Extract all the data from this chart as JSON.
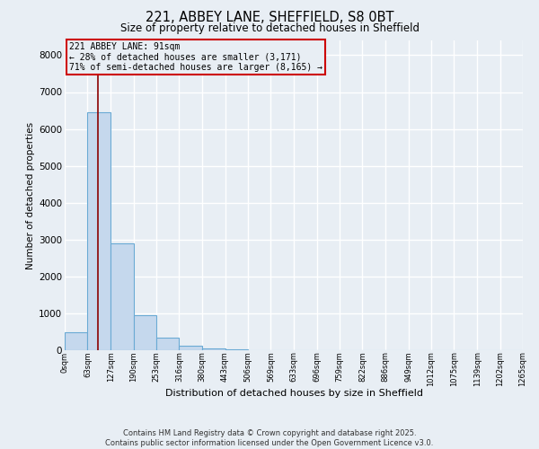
{
  "title": "221, ABBEY LANE, SHEFFIELD, S8 0BT",
  "subtitle": "Size of property relative to detached houses in Sheffield",
  "xlabel": "Distribution of detached houses by size in Sheffield",
  "ylabel": "Number of detached properties",
  "bar_color": "#c5d8ed",
  "bar_edge_color": "#6aaad4",
  "annotation_box_color": "#cc0000",
  "property_line_color": "#8b0000",
  "property_sqm": 91,
  "annotation_line1": "221 ABBEY LANE: 91sqm",
  "annotation_line2": "← 28% of detached houses are smaller (3,171)",
  "annotation_line3": "71% of semi-detached houses are larger (8,165) →",
  "footer_line1": "Contains HM Land Registry data © Crown copyright and database right 2025.",
  "footer_line2": "Contains public sector information licensed under the Open Government Licence v3.0.",
  "ylim": [
    0,
    8400
  ],
  "yticks": [
    0,
    1000,
    2000,
    3000,
    4000,
    5000,
    6000,
    7000,
    8000
  ],
  "bin_edges": [
    0,
    63,
    127,
    190,
    253,
    316,
    380,
    443,
    506,
    569,
    633,
    696,
    759,
    822,
    886,
    949,
    1012,
    1075,
    1139,
    1202,
    1265
  ],
  "bin_labels": [
    "0sqm",
    "63sqm",
    "127sqm",
    "190sqm",
    "253sqm",
    "316sqm",
    "380sqm",
    "443sqm",
    "506sqm",
    "569sqm",
    "633sqm",
    "696sqm",
    "759sqm",
    "822sqm",
    "886sqm",
    "949sqm",
    "1012sqm",
    "1075sqm",
    "1139sqm",
    "1202sqm",
    "1265sqm"
  ],
  "bar_heights": [
    480,
    6450,
    2900,
    960,
    350,
    120,
    60,
    25,
    12,
    8,
    5,
    4,
    3,
    2,
    2,
    1,
    1,
    1,
    0,
    0
  ],
  "background_color": "#e8eef4",
  "plot_bg_color": "#e8eef4",
  "grid_color": "#ffffff"
}
